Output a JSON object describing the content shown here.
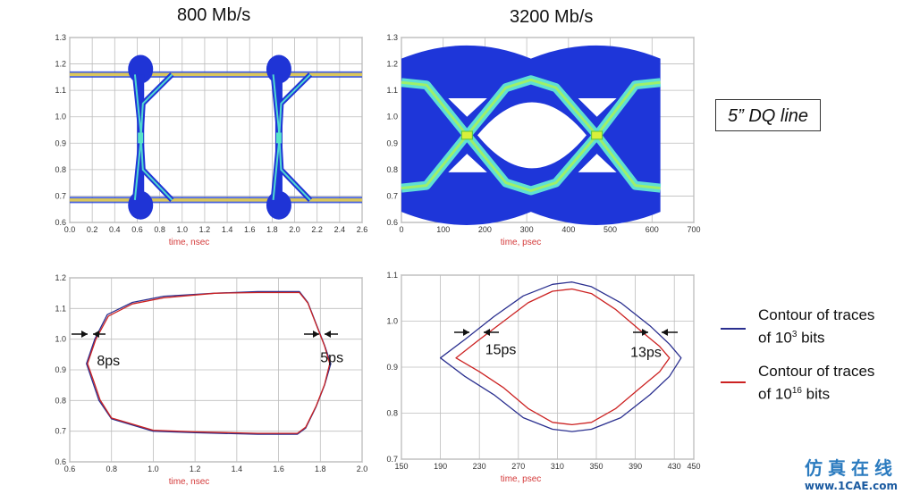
{
  "titles": {
    "left": "800 Mb/s",
    "right": "3200 Mb/s"
  },
  "dq_label": "5” DQ line",
  "legend": {
    "items": [
      {
        "line1": "Contour of traces",
        "line2_prefix": "of 10",
        "line2_sup": "3",
        "line2_suffix": " bits",
        "color": "#2a2f8f"
      },
      {
        "line1": "Contour of traces",
        "line2_prefix": "of 10",
        "line2_sup": "16",
        "line2_suffix": " bits",
        "color": "#cc2222"
      }
    ]
  },
  "watermark": {
    "cn": "仿真在线",
    "url": "www.1CAE.com"
  },
  "chart_data": [
    {
      "id": "eye-800",
      "type": "heatmap",
      "title": "",
      "xlabel": "time, nsec",
      "xlim": [
        0.0,
        2.6
      ],
      "ylim": [
        0.6,
        1.3
      ],
      "xticks": [
        "0.0",
        "0.2",
        "0.4",
        "0.6",
        "0.8",
        "1.0",
        "1.2",
        "1.4",
        "1.6",
        "1.8",
        "2.0",
        "2.2",
        "2.4",
        "2.6"
      ],
      "yticks": [
        "0.6",
        "0.7",
        "0.8",
        "0.9",
        "1.0",
        "1.1",
        "1.2",
        "1.3"
      ],
      "high_level": 1.16,
      "low_level": 0.685,
      "crossings": [
        0.63,
        1.86
      ],
      "grid": true
    },
    {
      "id": "eye-3200",
      "type": "heatmap",
      "title": "",
      "xlabel": "time, psec",
      "xlim": [
        0,
        700
      ],
      "ylim": [
        0.6,
        1.3
      ],
      "xticks": [
        "0",
        "100",
        "200",
        "300",
        "400",
        "500",
        "600",
        "700"
      ],
      "yticks": [
        "0.6",
        "0.7",
        "0.8",
        "0.9",
        "1.0",
        "1.1",
        "1.2",
        "1.3"
      ],
      "crossings": [
        157,
        468
      ],
      "center_y": 0.93,
      "grid": true
    },
    {
      "id": "contour-800",
      "type": "line",
      "title": "",
      "xlabel": "time, nsec",
      "xlim": [
        0.6,
        2.0
      ],
      "ylim": [
        0.6,
        1.2
      ],
      "xticks": [
        "0.6",
        "0.8",
        "1.0",
        "1.2",
        "1.4",
        "1.6",
        "1.8",
        "2.0"
      ],
      "yticks": [
        "0.6",
        "0.7",
        "0.8",
        "0.9",
        "1.0",
        "1.1",
        "1.2"
      ],
      "grid": true,
      "series": [
        {
          "color": "#2a2f8f",
          "x": [
            0.68,
            0.72,
            0.78,
            0.9,
            1.05,
            1.3,
            1.5,
            1.7,
            1.74,
            1.78,
            1.82,
            1.85,
            1.82,
            1.78,
            1.73,
            1.69,
            1.5,
            1.2,
            1.0,
            0.8,
            0.74,
            0.71,
            0.68
          ],
          "y": [
            0.92,
            1.0,
            1.08,
            1.12,
            1.14,
            1.15,
            1.155,
            1.155,
            1.12,
            1.05,
            0.98,
            0.92,
            0.85,
            0.78,
            0.71,
            0.69,
            0.69,
            0.695,
            0.7,
            0.74,
            0.8,
            0.86,
            0.92
          ]
        },
        {
          "color": "#cc2222",
          "x": [
            0.685,
            0.725,
            0.785,
            0.9,
            1.05,
            1.3,
            1.5,
            1.7,
            1.74,
            1.78,
            1.82,
            1.845,
            1.82,
            1.78,
            1.73,
            1.69,
            1.5,
            1.2,
            1.0,
            0.8,
            0.745,
            0.715,
            0.685
          ],
          "y": [
            0.92,
            1.0,
            1.075,
            1.115,
            1.135,
            1.15,
            1.152,
            1.152,
            1.118,
            1.048,
            0.978,
            0.92,
            0.852,
            0.782,
            0.713,
            0.693,
            0.693,
            0.698,
            0.703,
            0.743,
            0.802,
            0.862,
            0.92
          ]
        }
      ],
      "annotations": [
        {
          "text": "8ps",
          "x": 0.73,
          "y": 0.955
        },
        {
          "text": "5ps",
          "x": 1.8,
          "y": 0.965
        }
      ]
    },
    {
      "id": "contour-3200",
      "type": "line",
      "title": "",
      "xlabel": "time, psec",
      "xlim": [
        150,
        450
      ],
      "ylim": [
        0.7,
        1.1
      ],
      "xticks": [
        "150",
        "190",
        "230",
        "270",
        "310",
        "350",
        "390",
        "430",
        "450"
      ],
      "yticks": [
        "0.7",
        "0.8",
        "0.9",
        "1.0",
        "1.1"
      ],
      "grid": true,
      "series": [
        {
          "color": "#2a2f8f",
          "x": [
            190,
            215,
            245,
            275,
            305,
            325,
            345,
            375,
            405,
            425,
            437,
            425,
            405,
            375,
            345,
            325,
            305,
            275,
            245,
            215,
            190
          ],
          "y": [
            0.92,
            0.96,
            1.01,
            1.055,
            1.08,
            1.085,
            1.075,
            1.04,
            0.99,
            0.95,
            0.92,
            0.88,
            0.84,
            0.79,
            0.765,
            0.76,
            0.765,
            0.79,
            0.84,
            0.88,
            0.92
          ]
        },
        {
          "color": "#cc2222",
          "x": [
            206,
            230,
            255,
            280,
            305,
            325,
            345,
            370,
            395,
            415,
            425,
            415,
            395,
            370,
            345,
            325,
            305,
            280,
            255,
            230,
            206
          ],
          "y": [
            0.92,
            0.96,
            1.0,
            1.04,
            1.065,
            1.07,
            1.06,
            1.025,
            0.98,
            0.945,
            0.92,
            0.89,
            0.855,
            0.81,
            0.78,
            0.775,
            0.78,
            0.81,
            0.855,
            0.89,
            0.92
          ]
        }
      ],
      "annotations": [
        {
          "text": "15ps",
          "x": 236,
          "y": 0.955
        },
        {
          "text": "13ps",
          "x": 385,
          "y": 0.95
        }
      ]
    }
  ]
}
